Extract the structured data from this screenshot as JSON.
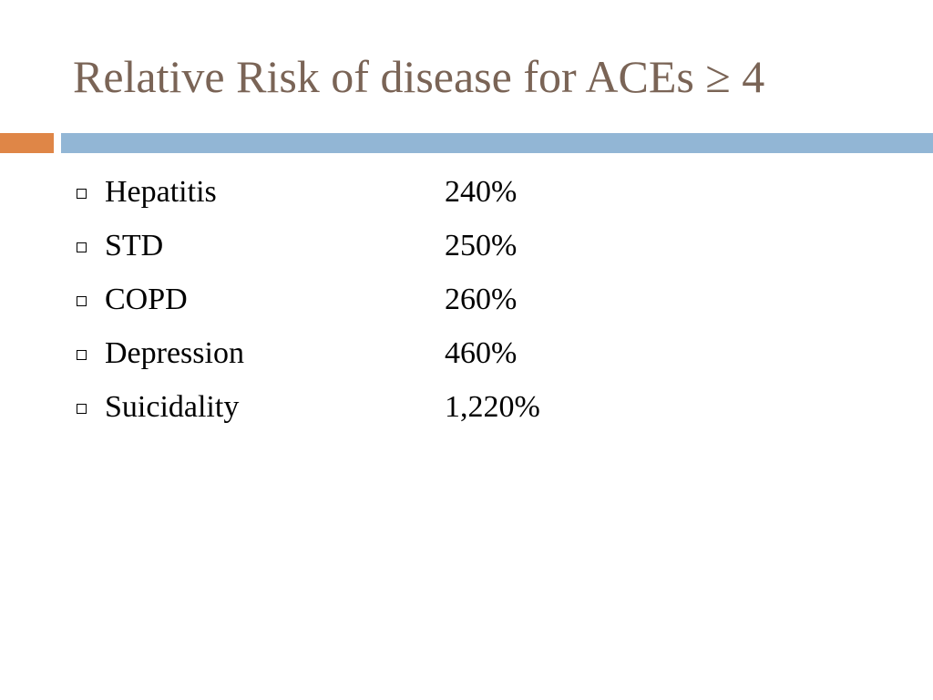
{
  "slide": {
    "title": "Relative Risk of disease for ACEs ≥ 4",
    "colors": {
      "title": "#7a6456",
      "accent_orange": "#df8647",
      "accent_blue": "#92b6d5",
      "text": "#000000"
    },
    "bullet_icon": "hollow-square-bullet-icon",
    "items": [
      {
        "label": "Hepatitis",
        "value": "240%"
      },
      {
        "label": "STD",
        "value": "250%"
      },
      {
        "label": "COPD",
        "value": "260%"
      },
      {
        "label": "Depression",
        "value": "460%"
      },
      {
        "label": "Suicidality",
        "value": "1,220%"
      }
    ]
  }
}
